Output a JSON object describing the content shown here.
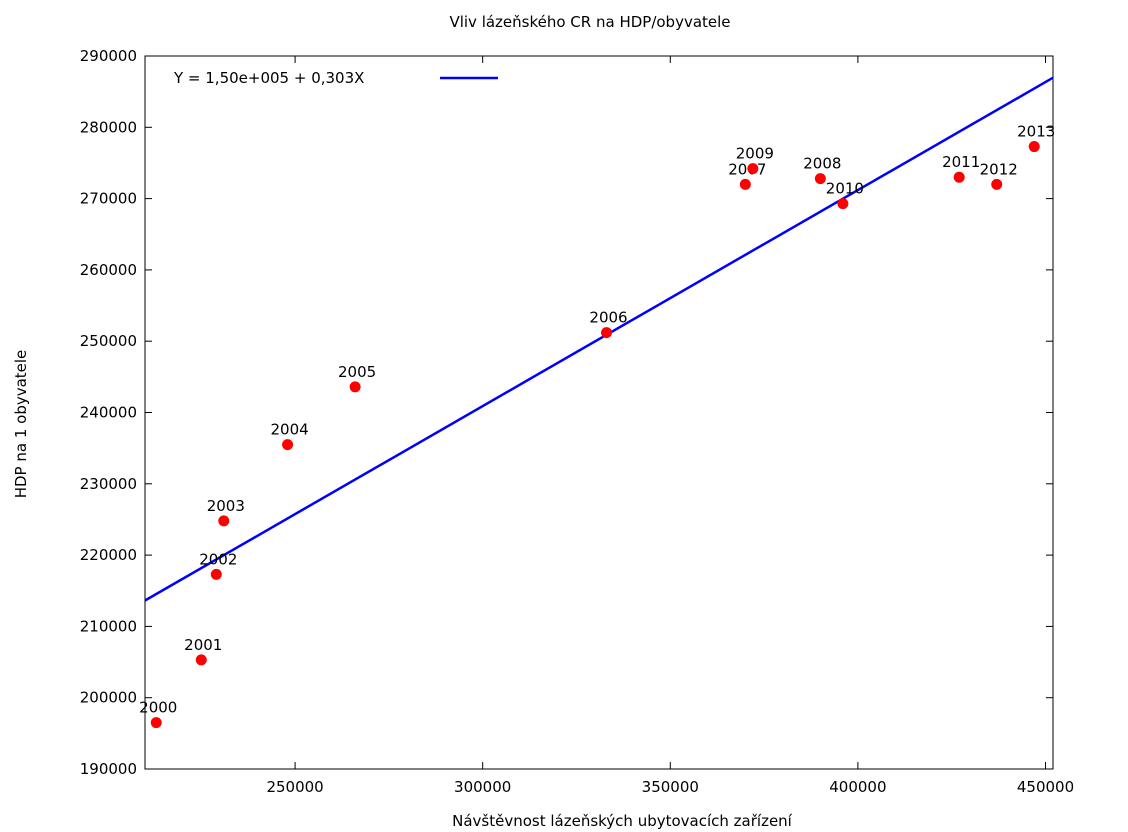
{
  "chart_data": {
    "type": "scatter",
    "title": "Vliv lázeňského CR na HDP/obyvatele",
    "xlabel": "Návštěvnost lázeňských ubytovacích zařízení",
    "ylabel": "HDP na 1 obyvatele",
    "xlim": [
      210000,
      452000
    ],
    "ylim": [
      190000,
      290000
    ],
    "x_ticks": [
      250000,
      300000,
      350000,
      400000,
      450000
    ],
    "y_ticks": [
      190000,
      200000,
      210000,
      220000,
      230000,
      240000,
      250000,
      260000,
      270000,
      280000,
      290000
    ],
    "grid": false,
    "legend_position": "top-left",
    "colors": {
      "points": "#ff0000",
      "fit_line": "#0000ff",
      "axes": "#000000"
    },
    "points": [
      {
        "label": "2000",
        "x": 213000,
        "y": 196500
      },
      {
        "label": "2001",
        "x": 225000,
        "y": 205300
      },
      {
        "label": "2002",
        "x": 229000,
        "y": 217300
      },
      {
        "label": "2003",
        "x": 231000,
        "y": 224800
      },
      {
        "label": "2004",
        "x": 248000,
        "y": 235500
      },
      {
        "label": "2005",
        "x": 266000,
        "y": 243600
      },
      {
        "label": "2006",
        "x": 333000,
        "y": 251200
      },
      {
        "label": "2007",
        "x": 370000,
        "y": 272000
      },
      {
        "label": "2008",
        "x": 390000,
        "y": 272800
      },
      {
        "label": "2009",
        "x": 372000,
        "y": 274200
      },
      {
        "label": "2010",
        "x": 396000,
        "y": 269300
      },
      {
        "label": "2011",
        "x": 427000,
        "y": 273000
      },
      {
        "label": "2012",
        "x": 437000,
        "y": 272000
      },
      {
        "label": "2013",
        "x": 447000,
        "y": 277300
      }
    ],
    "fit": {
      "label": "Y = 1,50e+005 + 0,303X",
      "intercept": 150000,
      "slope": 0.303
    }
  }
}
